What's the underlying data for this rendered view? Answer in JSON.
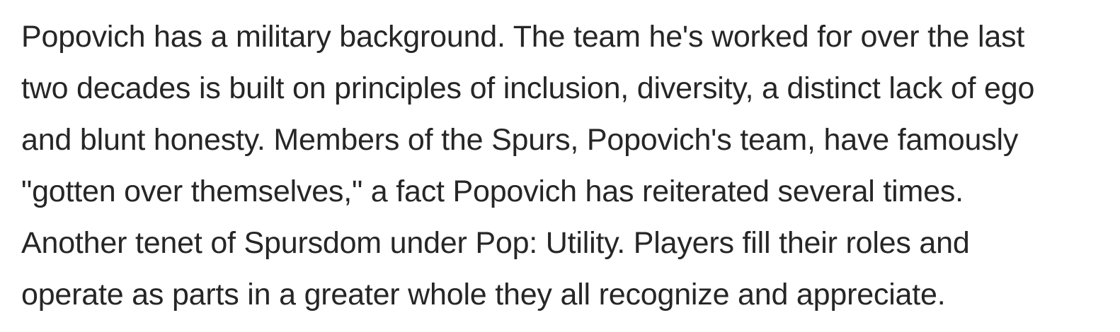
{
  "article": {
    "paragraph_lines": [
      "Popovich has a military background. The team he's worked for over the last",
      "two decades is built on principles of inclusion, diversity, a distinct lack of ego",
      "and blunt honesty. Members of the Spurs, Popovich's team, have famously",
      "\"gotten over themselves,\" a fact Popovich has reiterated several times.",
      "Another tenet of Spursdom under Pop: Utility. Players fill their roles and",
      "operate as parts in a greater whole they all recognize and appreciate."
    ]
  },
  "colors": {
    "text": "#262626",
    "background": "#ffffff"
  }
}
